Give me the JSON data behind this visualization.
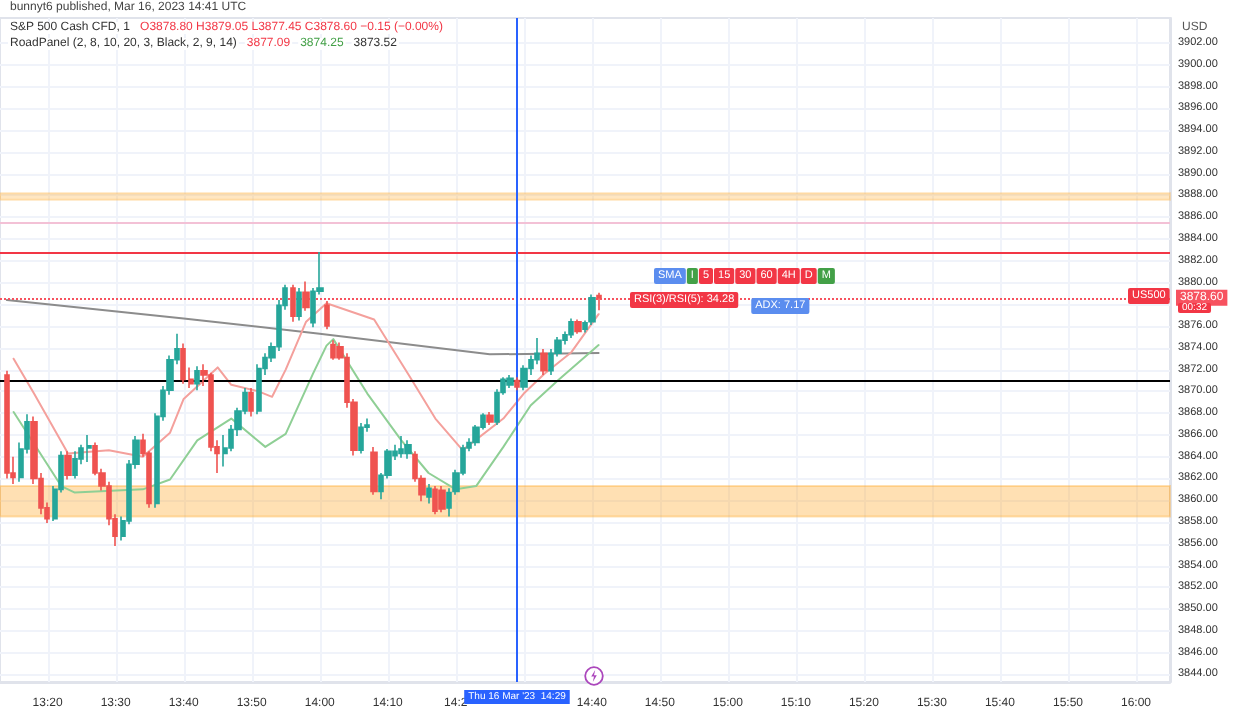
{
  "chart_data": {
    "type": "candlestick",
    "title": "S&P 500 Cash CFD, 1",
    "ylabel": "USD",
    "x": [
      "2023-03-16T13:14",
      "2023-03-16T13:15",
      "2023-03-16T13:16",
      "2023-03-16T13:17",
      "2023-03-16T13:18",
      "2023-03-16T13:19",
      "2023-03-16T13:20",
      "2023-03-16T13:21",
      "2023-03-16T13:22",
      "2023-03-16T13:23",
      "2023-03-16T13:24",
      "2023-03-16T13:25",
      "2023-03-16T13:26",
      "2023-03-16T13:27",
      "2023-03-16T13:28",
      "2023-03-16T13:29",
      "2023-03-16T13:30",
      "2023-03-16T13:31",
      "2023-03-16T13:32",
      "2023-03-16T13:33",
      "2023-03-16T13:34",
      "2023-03-16T13:35",
      "2023-03-16T13:36",
      "2023-03-16T13:37",
      "2023-03-16T13:38",
      "2023-03-16T13:39",
      "2023-03-16T13:40",
      "2023-03-16T13:41",
      "2023-03-16T13:42",
      "2023-03-16T13:43",
      "2023-03-16T13:44",
      "2023-03-16T13:45",
      "2023-03-16T13:46",
      "2023-03-16T13:47",
      "2023-03-16T13:48",
      "2023-03-16T13:49",
      "2023-03-16T13:50",
      "2023-03-16T13:51",
      "2023-03-16T13:52",
      "2023-03-16T13:53",
      "2023-03-16T13:54",
      "2023-03-16T13:55",
      "2023-03-16T13:56",
      "2023-03-16T13:57",
      "2023-03-16T13:58",
      "2023-03-16T13:59",
      "2023-03-16T14:00",
      "2023-03-16T14:01",
      "2023-03-16T14:02",
      "2023-03-16T14:03",
      "2023-03-16T14:04",
      "2023-03-16T14:05",
      "2023-03-16T14:06",
      "2023-03-16T14:07",
      "2023-03-16T14:08",
      "2023-03-16T14:09",
      "2023-03-16T14:10",
      "2023-03-16T14:11",
      "2023-03-16T14:12",
      "2023-03-16T14:13",
      "2023-03-16T14:14",
      "2023-03-16T14:15",
      "2023-03-16T14:16",
      "2023-03-16T14:17",
      "2023-03-16T14:18",
      "2023-03-16T14:19",
      "2023-03-16T14:20",
      "2023-03-16T14:21",
      "2023-03-16T14:22",
      "2023-03-16T14:23",
      "2023-03-16T14:24",
      "2023-03-16T14:25",
      "2023-03-16T14:26",
      "2023-03-16T14:27",
      "2023-03-16T14:28",
      "2023-03-16T14:29",
      "2023-03-16T14:30",
      "2023-03-16T14:31",
      "2023-03-16T14:32",
      "2023-03-16T14:33",
      "2023-03-16T14:34",
      "2023-03-16T14:35",
      "2023-03-16T14:36",
      "2023-03-16T14:37",
      "2023-03-16T14:38",
      "2023-03-16T14:39",
      "2023-03-16T14:40",
      "2023-03-16T14:41"
    ],
    "ohlc": [
      [
        3871.5,
        3871.9,
        3862.0,
        3862.5
      ],
      [
        3862.5,
        3864.0,
        3861.5,
        3862.1
      ],
      [
        3862.1,
        3865.3,
        3861.7,
        3864.7
      ],
      [
        3864.7,
        3867.9,
        3864.3,
        3867.2
      ],
      [
        3867.2,
        3867.7,
        3861.5,
        3862.0
      ],
      [
        3862.0,
        3862.5,
        3858.7,
        3859.3
      ],
      [
        3859.3,
        3859.8,
        3857.9,
        3858.3
      ],
      [
        3858.3,
        3861.3,
        3858.1,
        3861.0
      ],
      [
        3861.0,
        3864.5,
        3860.7,
        3864.1
      ],
      [
        3864.1,
        3864.5,
        3861.9,
        3862.3
      ],
      [
        3862.3,
        3864.5,
        3862.0,
        3863.8
      ],
      [
        3863.8,
        3865.1,
        3863.3,
        3864.8
      ],
      [
        3864.8,
        3866.0,
        3863.5,
        3865.0
      ],
      [
        3865.0,
        3865.3,
        3862.3,
        3862.5
      ],
      [
        3862.5,
        3862.9,
        3860.9,
        3861.3
      ],
      [
        3861.3,
        3861.7,
        3857.7,
        3858.3
      ],
      [
        3858.3,
        3858.7,
        3855.8,
        3856.7
      ],
      [
        3856.7,
        3858.5,
        3856.3,
        3858.1
      ],
      [
        3858.1,
        3863.7,
        3857.8,
        3863.3
      ],
      [
        3863.3,
        3865.9,
        3862.9,
        3865.5
      ],
      [
        3865.5,
        3866.1,
        3864.0,
        3864.3
      ],
      [
        3864.3,
        3864.5,
        3859.3,
        3859.7
      ],
      [
        3859.7,
        3868.0,
        3859.3,
        3867.7
      ],
      [
        3867.7,
        3870.5,
        3867.3,
        3870.1
      ],
      [
        3870.1,
        3873.3,
        3869.7,
        3872.9
      ],
      [
        3872.9,
        3875.3,
        3872.5,
        3873.9
      ],
      [
        3873.9,
        3874.4,
        3870.7,
        3871.1
      ],
      [
        3871.1,
        3872.2,
        3870.3,
        3870.7
      ],
      [
        3870.7,
        3872.3,
        3870.1,
        3871.9
      ],
      [
        3871.9,
        3872.5,
        3870.5,
        3871.5
      ],
      [
        3871.5,
        3871.7,
        3864.5,
        3864.9
      ],
      [
        3864.9,
        3865.5,
        3862.5,
        3864.3
      ],
      [
        3864.3,
        3866.0,
        3863.1,
        3864.8
      ],
      [
        3864.8,
        3866.9,
        3864.5,
        3866.5
      ],
      [
        3866.5,
        3868.5,
        3865.9,
        3868.2
      ],
      [
        3868.2,
        3870.3,
        3867.9,
        3869.9
      ],
      [
        3869.9,
        3870.3,
        3867.7,
        3868.2
      ],
      [
        3868.2,
        3872.5,
        3867.9,
        3872.1
      ],
      [
        3872.1,
        3873.5,
        3871.5,
        3873.1
      ],
      [
        3873.1,
        3874.5,
        3872.7,
        3874.1
      ],
      [
        3874.1,
        3878.4,
        3873.7,
        3877.9
      ],
      [
        3877.9,
        3879.8,
        3877.5,
        3879.5
      ],
      [
        3879.5,
        3879.8,
        3876.4,
        3876.9
      ],
      [
        3876.9,
        3879.5,
        3876.5,
        3879.1
      ],
      [
        3879.1,
        3880.1,
        3877.4,
        3877.7
      ],
      [
        3876.3,
        3879.5,
        3875.9,
        3879.2
      ],
      [
        3879.2,
        3882.8,
        3878.9,
        3879.5
      ],
      [
        3877.9,
        3878.3,
        3875.7,
        3876.0
      ],
      [
        3874.3,
        3874.7,
        3872.9,
        3873.1
      ],
      [
        3874.1,
        3874.5,
        3872.9,
        3873.1
      ],
      [
        3873.1,
        3873.5,
        3868.5,
        3869.0
      ],
      [
        3869.0,
        3869.3,
        3864.1,
        3864.6
      ],
      [
        3864.6,
        3867.1,
        3864.3,
        3866.7
      ],
      [
        3866.7,
        3867.5,
        3866.3,
        3866.9
      ],
      [
        3864.4,
        3864.9,
        3860.5,
        3860.8
      ],
      [
        3860.8,
        3862.5,
        3860.1,
        3862.3
      ],
      [
        3862.3,
        3864.7,
        3862.0,
        3864.5
      ],
      [
        3864.1,
        3865.1,
        3863.7,
        3864.5
      ],
      [
        3864.3,
        3865.9,
        3863.9,
        3864.7
      ],
      [
        3864.3,
        3865.5,
        3863.8,
        3865.1
      ],
      [
        3864.2,
        3864.5,
        3861.7,
        3862.0
      ],
      [
        3862.0,
        3862.3,
        3859.9,
        3860.5
      ],
      [
        3860.3,
        3861.5,
        3859.7,
        3861.1
      ],
      [
        3861.0,
        3861.3,
        3858.7,
        3859.0
      ],
      [
        3860.9,
        3861.3,
        3858.9,
        3859.2
      ],
      [
        3859.3,
        3861.1,
        3858.5,
        3860.7
      ],
      [
        3860.8,
        3862.8,
        3860.5,
        3862.5
      ],
      [
        3862.5,
        3865.1,
        3862.3,
        3864.8
      ],
      [
        3864.8,
        3865.7,
        3864.5,
        3865.3
      ],
      [
        3865.3,
        3866.9,
        3865.0,
        3866.7
      ],
      [
        3866.7,
        3868.0,
        3866.5,
        3867.8
      ],
      [
        3867.8,
        3868.1,
        3866.9,
        3867.2
      ],
      [
        3867.2,
        3870.2,
        3866.9,
        3869.9
      ],
      [
        3869.9,
        3871.3,
        3869.7,
        3871.1
      ],
      [
        3870.6,
        3871.5,
        3870.3,
        3871.2
      ],
      [
        3871.0,
        3871.3,
        3870.1,
        3870.4
      ],
      [
        3870.4,
        3872.4,
        3870.1,
        3872.1
      ],
      [
        3872.1,
        3873.3,
        3871.5,
        3872.9
      ],
      [
        3872.9,
        3874.9,
        3872.5,
        3873.5
      ],
      [
        3873.5,
        3873.9,
        3871.5,
        3871.9
      ],
      [
        3871.9,
        3873.9,
        3871.5,
        3873.5
      ],
      [
        3873.5,
        3875.0,
        3873.2,
        3874.7
      ],
      [
        3874.7,
        3875.5,
        3874.3,
        3875.2
      ],
      [
        3875.2,
        3876.7,
        3874.9,
        3876.4
      ],
      [
        3876.4,
        3876.6,
        3875.3,
        3875.5
      ],
      [
        3875.7,
        3876.5,
        3875.4,
        3876.3
      ],
      [
        3876.4,
        3878.9,
        3876.1,
        3878.6
      ],
      [
        3878.8,
        3879.05,
        3877.45,
        3878.6
      ]
    ],
    "colors": [
      "#ef5350",
      "#ef5350",
      "#26a69a",
      "#26a69a",
      "#ef5350",
      "#ef5350",
      "#ef5350",
      "#26a69a",
      "#26a69a",
      "#ef5350",
      "#26a69a",
      "#26a69a",
      "#26a69a",
      "#ef5350",
      "#ef5350",
      "#ef5350",
      "#ef5350",
      "#26a69a",
      "#26a69a",
      "#26a69a",
      "#ef5350",
      "#ef5350",
      "#26a69a",
      "#26a69a",
      "#26a69a",
      "#26a69a",
      "#ef5350",
      "#ef5350",
      "#26a69a",
      "#ef5350",
      "#ef5350",
      "#ef5350",
      "#26a69a",
      "#26a69a",
      "#26a69a",
      "#26a69a",
      "#ef5350",
      "#26a69a",
      "#26a69a",
      "#26a69a",
      "#26a69a",
      "#26a69a",
      "#ef5350",
      "#26a69a",
      "#ef5350",
      "#26a69a",
      "#26a69a",
      "#ef5350",
      "#ef5350",
      "#ef5350",
      "#ef5350",
      "#ef5350",
      "#26a69a",
      "#26a69a",
      "#ef5350",
      "#26a69a",
      "#26a69a",
      "#26a69a",
      "#26a69a",
      "#26a69a",
      "#ef5350",
      "#ef5350",
      "#26a69a",
      "#ef5350",
      "#ef5350",
      "#26a69a",
      "#26a69a",
      "#26a69a",
      "#26a69a",
      "#26a69a",
      "#26a69a",
      "#ef5350",
      "#26a69a",
      "#26a69a",
      "#26a69a",
      "#ef5350",
      "#26a69a",
      "#26a69a",
      "#26a69a",
      "#ef5350",
      "#26a69a",
      "#26a69a",
      "#26a69a",
      "#26a69a",
      "#ef5350",
      "#26a69a",
      "#26a69a",
      "#ef5350"
    ],
    "series": [
      {
        "type": "line",
        "color": "#8c8c8c",
        "x": [
          "2023-03-16T13:14",
          "2023-03-16T13:40",
          "2023-03-16T14:00",
          "2023-03-16T14:25",
          "2023-03-16T14:41"
        ],
        "values": [
          3878.4,
          3876.7,
          3875.3,
          3873.4,
          3873.52
        ]
      },
      {
        "type": "line",
        "color": "#f4a09c",
        "x": [
          "2023-03-16T13:15",
          "2023-03-16T13:18",
          "2023-03-16T13:23",
          "2023-03-16T13:29",
          "2023-03-16T13:34",
          "2023-03-16T13:38",
          "2023-03-16T13:40",
          "2023-03-16T13:45",
          "2023-03-16T13:47",
          "2023-03-16T13:51",
          "2023-03-16T13:53",
          "2023-03-16T13:55",
          "2023-03-16T13:58",
          "2023-03-16T14:01",
          "2023-03-16T14:08",
          "2023-03-16T14:13",
          "2023-03-16T14:17",
          "2023-03-16T14:21",
          "2023-03-16T14:27",
          "2023-03-16T14:30",
          "2023-03-16T14:33",
          "2023-03-16T14:37",
          "2023-03-16T14:41"
        ],
        "values": [
          3873.0,
          3869.8,
          3864.3,
          3864.6,
          3864.0,
          3866.2,
          3869.3,
          3872.2,
          3870.6,
          3870.0,
          3869.5,
          3872.0,
          3876.4,
          3878.1,
          3876.6,
          3871.6,
          3867.5,
          3864.6,
          3867.5,
          3869.8,
          3871.6,
          3873.6,
          3877.09
        ]
      },
      {
        "type": "line",
        "color": "#8fcf95",
        "x": [
          "2023-03-16T13:15",
          "2023-03-16T13:22",
          "2023-03-16T13:24",
          "2023-03-16T13:34",
          "2023-03-16T13:38",
          "2023-03-16T13:42",
          "2023-03-16T13:47",
          "2023-03-16T13:52",
          "2023-03-16T13:55",
          "2023-03-16T13:59",
          "2023-03-16T14:01",
          "2023-03-16T14:02",
          "2023-03-16T14:07",
          "2023-03-16T14:12",
          "2023-03-16T14:16",
          "2023-03-16T14:20",
          "2023-03-16T14:23",
          "2023-03-16T14:27",
          "2023-03-16T14:31",
          "2023-03-16T14:35",
          "2023-03-16T14:41"
        ],
        "values": [
          3868.1,
          3861.3,
          3860.7,
          3861.0,
          3861.9,
          3865.5,
          3867.5,
          3864.9,
          3866.1,
          3871.6,
          3874.2,
          3874.8,
          3869.8,
          3865.5,
          3862.5,
          3861.0,
          3861.3,
          3864.9,
          3868.7,
          3871.0,
          3874.25
        ]
      }
    ],
    "xlim": [
      "2023-03-16T13:13",
      "2023-03-16T16:05"
    ],
    "xticks": [
      {
        "value": "2023-03-16T13:20",
        "label": "13:20"
      },
      {
        "value": "2023-03-16T13:30",
        "label": "13:30"
      },
      {
        "value": "2023-03-16T13:40",
        "label": "13:40"
      },
      {
        "value": "2023-03-16T13:50",
        "label": "13:50"
      },
      {
        "value": "2023-03-16T14:00",
        "label": "14:00"
      },
      {
        "value": "2023-03-16T14:10",
        "label": "14:10"
      },
      {
        "value": "2023-03-16T14:20",
        "label": "14:2"
      },
      {
        "value": "2023-03-16T14:30",
        "label": null
      },
      {
        "value": "2023-03-16T14:40",
        "label": "14:40"
      },
      {
        "value": "2023-03-16T14:50",
        "label": "14:50"
      },
      {
        "value": "2023-03-16T15:00",
        "label": "15:00"
      },
      {
        "value": "2023-03-16T15:10",
        "label": "15:10"
      },
      {
        "value": "2023-03-16T15:20",
        "label": "15:20"
      },
      {
        "value": "2023-03-16T15:30",
        "label": "15:30"
      },
      {
        "value": "2023-03-16T15:40",
        "label": "15:40"
      },
      {
        "value": "2023-03-16T15:50",
        "label": "15:50"
      },
      {
        "value": "2023-03-16T16:00",
        "label": "16:00"
      }
    ],
    "ylim": [
      3843.3,
      3904.3
    ],
    "yticks": [
      {
        "value": 3844,
        "label": "3844.00"
      },
      {
        "value": 3846,
        "label": "3846.00"
      },
      {
        "value": 3848,
        "label": "3848.00"
      },
      {
        "value": 3850,
        "label": "3850.00"
      },
      {
        "value": 3852,
        "label": "3852.00"
      },
      {
        "value": 3854,
        "label": "3854.00"
      },
      {
        "value": 3856,
        "label": "3856.00"
      },
      {
        "value": 3858,
        "label": "3858.00"
      },
      {
        "value": 3860,
        "label": "3860.00"
      },
      {
        "value": 3862,
        "label": "3862.00"
      },
      {
        "value": 3864,
        "label": "3864.00"
      },
      {
        "value": 3866,
        "label": "3866.00"
      },
      {
        "value": 3868,
        "label": "3868.00"
      },
      {
        "value": 3870,
        "label": "3870.00"
      },
      {
        "value": 3872,
        "label": "3872.00"
      },
      {
        "value": 3874,
        "label": "3874.00"
      },
      {
        "value": 3876,
        "label": "3876.00"
      },
      {
        "value": 3878,
        "label": null
      },
      {
        "value": 3880,
        "label": "3880.00"
      },
      {
        "value": 3882,
        "label": "3882.00"
      },
      {
        "value": 3884,
        "label": "3884.00"
      },
      {
        "value": 3886,
        "label": "3886.00"
      },
      {
        "value": 3888,
        "label": "3888.00"
      },
      {
        "value": 3890,
        "label": "3890.00"
      },
      {
        "value": 3892,
        "label": "3892.00"
      },
      {
        "value": 3894,
        "label": "3894.00"
      },
      {
        "value": 3896,
        "label": "3896.00"
      },
      {
        "value": 3898,
        "label": "3898.00"
      },
      {
        "value": 3900,
        "label": "3900.00"
      },
      {
        "value": 3902,
        "label": "3902.00"
      }
    ],
    "grid": true,
    "ref_lines": [
      {
        "axis": "y",
        "value": 3885.5,
        "color": "#f3c1d6"
      },
      {
        "axis": "y",
        "value": 3882.8,
        "color": "#f23645"
      },
      {
        "axis": "y",
        "value": 3871.0,
        "color": "#000000"
      },
      {
        "axis": "y",
        "value": 3878.6,
        "label": "3878.60",
        "color": "#f7525f",
        "line_style": "dotted"
      },
      {
        "axis": "x",
        "value": "2023-03-16T14:29",
        "label": "Thu 16 Mar '23  14:29",
        "color": "#2962ff"
      }
    ],
    "bands": [
      {
        "axis": "y",
        "from": 3887.6,
        "to": 3888.2,
        "color": "#ffb74d"
      },
      {
        "axis": "y",
        "from": 3858.5,
        "to": 3861.3,
        "color": "#ffa726"
      }
    ],
    "annotations": [
      "bunnyt6 published, Mar 16, 2023 14:41 UTC",
      "O3878.80 H3879.05 L3877.45 C3878.60 −0.15 (−0.00%)",
      "RoadPanel (2, 8, 10, 20, 3, Black, 2, 9, 14)",
      "3877.09",
      "3874.25",
      "3873.52",
      "SMA",
      "I",
      "5",
      "15",
      "30",
      "60",
      "4H",
      "D",
      "M",
      "RSI(3)/RSI(5): 34.28",
      "ADX: 7.17",
      "US500",
      "00:32"
    ]
  }
}
